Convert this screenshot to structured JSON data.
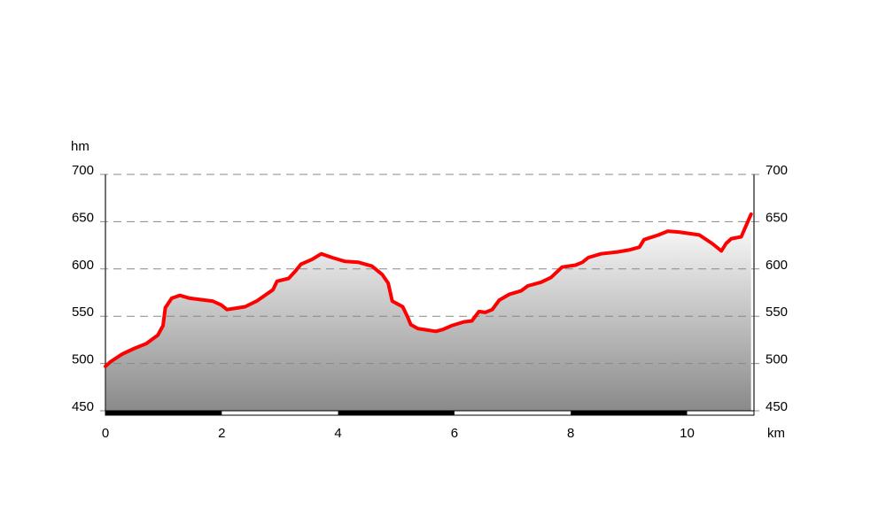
{
  "chart_data": {
    "type": "area",
    "y_label": "hm",
    "x_label": "km",
    "x": [
      0,
      0.09,
      0.29,
      0.5,
      0.7,
      0.9,
      0.99,
      1.03,
      1.14,
      1.28,
      1.45,
      1.84,
      1.99,
      2.09,
      2.4,
      2.6,
      2.88,
      2.95,
      3.15,
      3.27,
      3.36,
      3.55,
      3.71,
      3.9,
      4.12,
      4.35,
      4.58,
      4.76,
      4.86,
      4.93,
      5.11,
      5.19,
      5.25,
      5.37,
      5.68,
      5.8,
      5.95,
      6.16,
      6.3,
      6.42,
      6.53,
      6.65,
      6.77,
      6.94,
      7.15,
      7.26,
      7.49,
      7.66,
      7.85,
      8.08,
      8.2,
      8.3,
      8.52,
      8.8,
      9.0,
      9.18,
      9.26,
      9.51,
      9.67,
      9.86,
      10.21,
      10.43,
      10.59,
      10.67,
      10.76,
      10.93,
      11.1
    ],
    "values": [
      497,
      502,
      510,
      516,
      521,
      530,
      540,
      559,
      569,
      572,
      569,
      566,
      562,
      557,
      560,
      566,
      578,
      587,
      590,
      598,
      605,
      610,
      616,
      612,
      608,
      607,
      603,
      594,
      585,
      566,
      560,
      550,
      541,
      537,
      534,
      536,
      540,
      544,
      545,
      555,
      554,
      557,
      567,
      573,
      577,
      582,
      586,
      591,
      602,
      604,
      607,
      612,
      616,
      618,
      620,
      623,
      631,
      636,
      640,
      639,
      636,
      627,
      619,
      627,
      632,
      634,
      658
    ],
    "color": "#ff0000",
    "xlim": [
      0,
      11.15
    ],
    "ylim": [
      450,
      700
    ],
    "xticks": [
      0,
      2,
      4,
      6,
      8,
      10
    ],
    "yticks": [
      450,
      500,
      550,
      600,
      650,
      700
    ],
    "grid": true
  }
}
